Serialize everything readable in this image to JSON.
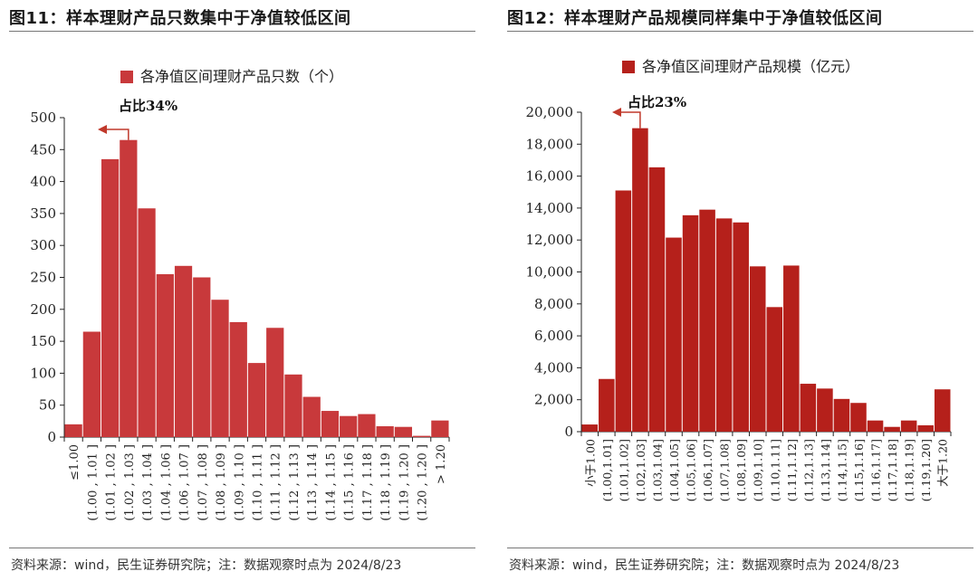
{
  "left": {
    "title": "图11：样本理财产品只数集中于净值较低区间",
    "source": "资料来源：wind，民生证券研究院；注：数据观察时点为 2024/8/23",
    "chart_data": {
      "type": "bar",
      "legend": "各净值区间理财产品只数（个）",
      "legend_position": "top",
      "annotation": "占比34%",
      "color": "#c8393b",
      "ylim": [
        0,
        500
      ],
      "yticks": [
        0,
        50,
        100,
        150,
        200,
        250,
        300,
        350,
        400,
        450,
        500
      ],
      "categories": [
        "≤1.00",
        "(1.00 , 1.01 ]",
        "(1.01 , 1.02 ]",
        "(1.02 , 1.03 ]",
        "(1.03 , 1.04 ]",
        "(1.04 , 1.06 ]",
        "(1.06 , 1.07 ]",
        "(1.07 , 1.08 ]",
        "(1.08 , 1.09 ]",
        "(1.09 , 1.10 ]",
        "(1.10 , 1.11 ]",
        "(1.11 , 1.12 ]",
        "(1.12 , 1.13 ]",
        "(1.13 , 1.14 ]",
        "(1.14 , 1.15 ]",
        "(1.15 , 1.16 ]",
        "(1.17 , 1.18 ]",
        "(1.18 , 1.19 ]",
        "(1.19 , 1.20 ]",
        "(1.20 , 1.20 ]",
        "> 1.20"
      ],
      "values": [
        20,
        165,
        435,
        465,
        358,
        255,
        268,
        250,
        215,
        180,
        116,
        171,
        98,
        63,
        41,
        33,
        36,
        17,
        16,
        2,
        26
      ]
    }
  },
  "right": {
    "title": "图12：样本理财产品规模同样集中于净值较低区间",
    "source": "资料来源：wind，民生证券研究院；注：数据观察时点为 2024/8/23",
    "chart_data": {
      "type": "bar",
      "legend": "各净值区间理财产品规模（亿元）",
      "legend_position": "top",
      "annotation": "占比23%",
      "color": "#b5201b",
      "ylim": [
        0,
        20000
      ],
      "yticks": [
        0,
        2000,
        4000,
        6000,
        8000,
        10000,
        12000,
        14000,
        16000,
        18000,
        20000
      ],
      "ytick_labels": [
        "0",
        "2,000",
        "4,000",
        "6,000",
        "8,000",
        "10,000",
        "12,000",
        "14,000",
        "16,000",
        "18,000",
        "20,000"
      ],
      "categories": [
        "小于1.00",
        "(1.00,1.01]",
        "(1.01,1.02]",
        "(1.02,1.03]",
        "(1.03,1.04]",
        "(1.04,1.05]",
        "(1.05,1.06]",
        "(1.06,1.07]",
        "(1.07,1.08]",
        "(1.08,1.09]",
        "(1.09,1.10]",
        "(1.10,1.11]",
        "(1.11,1.12]",
        "(1.12,1.13]",
        "(1.13,1.14]",
        "(1.14,1.15]",
        "(1.15,1.16]",
        "(1.16,1.17]",
        "(1.17,1.18]",
        "(1.18,1.19]",
        "(1.19,1.20]",
        "大于1.20"
      ],
      "values": [
        450,
        3300,
        15100,
        19000,
        16550,
        12150,
        13550,
        13900,
        13350,
        13100,
        10350,
        7800,
        10400,
        3000,
        2700,
        2050,
        1800,
        700,
        300,
        700,
        400,
        2650
      ]
    }
  }
}
